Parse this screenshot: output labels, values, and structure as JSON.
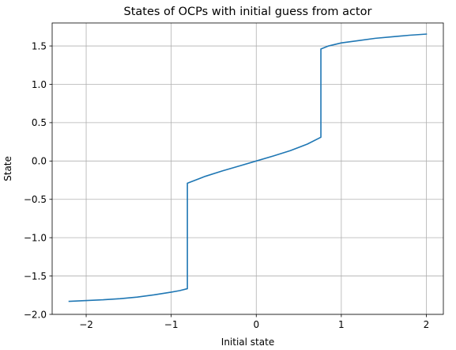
{
  "chart_data": {
    "type": "line",
    "title": "States of OCPs with initial guess from actor",
    "xlabel": "Initial state",
    "ylabel": "State",
    "xlim": [
      -2.4,
      2.2
    ],
    "ylim": [
      -2.0,
      1.8
    ],
    "grid": true,
    "x_ticks": [
      -2,
      -1,
      0,
      1,
      2
    ],
    "x_tick_labels": [
      "−2",
      "−1",
      "0",
      "1",
      "2"
    ],
    "y_ticks": [
      -2.0,
      -1.5,
      -1.0,
      -0.5,
      0.0,
      0.5,
      1.0,
      1.5
    ],
    "y_tick_labels": [
      "−2.0",
      "−1.5",
      "−1.0",
      "−0.5",
      "0.0",
      "0.5",
      "1.0",
      "1.5"
    ],
    "colors": {
      "series": "#1f77b4",
      "grid": "#b0b0b0",
      "axes": "#000000"
    },
    "series": [
      {
        "name": "",
        "x": [
          -2.2,
          -2.0,
          -1.8,
          -1.6,
          -1.4,
          -1.2,
          -1.0,
          -0.9,
          -0.81,
          -0.81,
          -0.6,
          -0.4,
          -0.2,
          0.0,
          0.2,
          0.4,
          0.6,
          0.76,
          0.76,
          0.85,
          1.0,
          1.2,
          1.4,
          1.6,
          1.8,
          2.0
        ],
        "y": [
          -1.83,
          -1.82,
          -1.81,
          -1.795,
          -1.775,
          -1.745,
          -1.71,
          -1.69,
          -1.665,
          -0.29,
          -0.2,
          -0.13,
          -0.065,
          0.0,
          0.065,
          0.135,
          0.22,
          0.31,
          1.46,
          1.5,
          1.54,
          1.57,
          1.6,
          1.62,
          1.64,
          1.655
        ]
      }
    ]
  }
}
